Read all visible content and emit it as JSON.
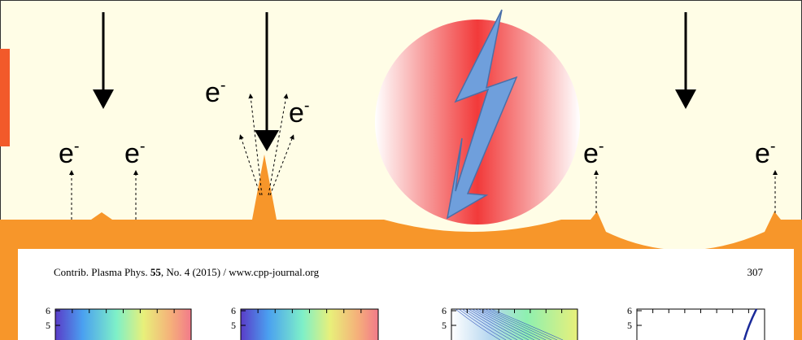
{
  "electrons": [
    {
      "symbol": "e",
      "charge": "-"
    },
    {
      "symbol": "e",
      "charge": "-"
    },
    {
      "symbol": "e",
      "charge": "-"
    },
    {
      "symbol": "e",
      "charge": "-"
    },
    {
      "symbol": "e",
      "charge": "-"
    },
    {
      "symbol": "e",
      "charge": "-"
    }
  ],
  "paper": {
    "header": {
      "journal": "Contrib. Plasma Phys.",
      "volume": "55",
      "issue": ", No. 4 (2015) / www.cpp-journal.org",
      "page": "307"
    },
    "plots": [
      {
        "yticks": [
          "6",
          "5"
        ]
      },
      {
        "yticks": [
          "6",
          "5"
        ]
      },
      {
        "yticks": [
          "6",
          "5"
        ]
      },
      {
        "yticks": [
          "6",
          "5"
        ]
      }
    ]
  }
}
